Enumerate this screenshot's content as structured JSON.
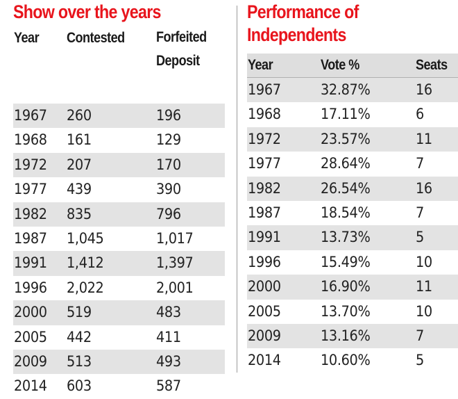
{
  "left": {
    "title": "Show over the years",
    "headers": {
      "year": "Year",
      "contested": "Contested",
      "forfeited_line1": "Forfeited",
      "forfeited_line2": "Deposit"
    },
    "rows": [
      {
        "year": "1967",
        "contested": "260",
        "forfeited": "196"
      },
      {
        "year": "1968",
        "contested": "161",
        "forfeited": "129"
      },
      {
        "year": "1972",
        "contested": "207",
        "forfeited": "170"
      },
      {
        "year": "1977",
        "contested": "439",
        "forfeited": "390"
      },
      {
        "year": "1982",
        "contested": "835",
        "forfeited": "796"
      },
      {
        "year": "1987",
        "contested": "1,045",
        "forfeited": "1,017"
      },
      {
        "year": "1991",
        "contested": "1,412",
        "forfeited": "1,397"
      },
      {
        "year": "1996",
        "contested": "2,022",
        "forfeited": "2,001"
      },
      {
        "year": "2000",
        "contested": "519",
        "forfeited": "483"
      },
      {
        "year": "2005",
        "contested": "442",
        "forfeited": "411"
      },
      {
        "year": "2009",
        "contested": "513",
        "forfeited": "493"
      },
      {
        "year": "2014",
        "contested": "603",
        "forfeited": "587"
      }
    ]
  },
  "right": {
    "title_line1": "Performance of",
    "title_line2": "Independents",
    "headers": {
      "year": "Year",
      "vote": "Vote %",
      "seats": "Seats"
    },
    "rows": [
      {
        "year": "1967",
        "vote": "32.87%",
        "seats": "16"
      },
      {
        "year": "1968",
        "vote": "17.11%",
        "seats": "6"
      },
      {
        "year": "1972",
        "vote": "23.57%",
        "seats": "11"
      },
      {
        "year": "1977",
        "vote": "28.64%",
        "seats": "7"
      },
      {
        "year": "1982",
        "vote": "26.54%",
        "seats": "16"
      },
      {
        "year": "1987",
        "vote": "18.54%",
        "seats": "7"
      },
      {
        "year": "1991",
        "vote": "13.73%",
        "seats": "5"
      },
      {
        "year": "1996",
        "vote": "15.49%",
        "seats": "10"
      },
      {
        "year": "2000",
        "vote": "16.90%",
        "seats": "11"
      },
      {
        "year": "2005",
        "vote": "13.70%",
        "seats": "10"
      },
      {
        "year": "2009",
        "vote": "13.16%",
        "seats": "7"
      },
      {
        "year": "2014",
        "vote": "10.60%",
        "seats": "5"
      }
    ]
  },
  "colors": {
    "title": "#e8141c",
    "row_shade": "#e3e3e3",
    "header_shade": "#dedede",
    "divider": "#9a9a9a"
  }
}
